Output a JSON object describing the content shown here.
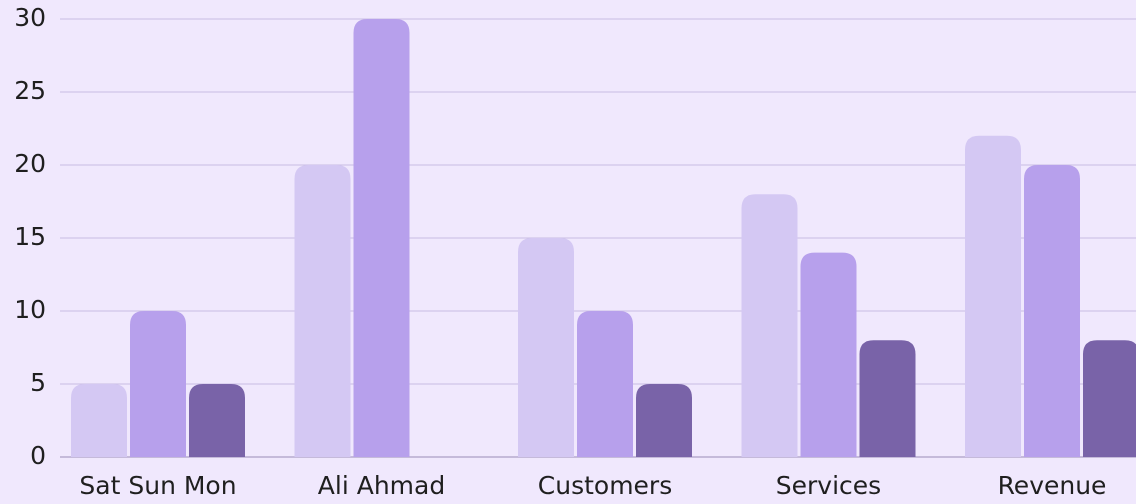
{
  "chart_data": {
    "type": "bar",
    "categories": [
      "Sat Sun Mon",
      "Ali Ahmad",
      "Customers",
      "Services",
      "Revenue"
    ],
    "series": [
      {
        "color": "#d4c8f3",
        "values": [
          5,
          20,
          15,
          18,
          22
        ]
      },
      {
        "color": "#b7a0ec",
        "values": [
          10,
          30,
          10,
          14,
          20
        ]
      },
      {
        "color": "#7963a8",
        "values": [
          5,
          null,
          5,
          8,
          8
        ]
      }
    ],
    "ylim": [
      0,
      30
    ],
    "yticks": [
      0,
      5,
      10,
      15,
      20,
      25,
      30
    ],
    "grid": true
  }
}
